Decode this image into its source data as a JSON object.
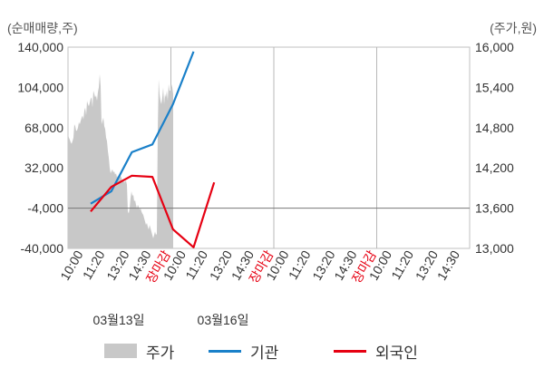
{
  "chart_data": {
    "type": "line",
    "left_unit_label": "(순매매량,주)",
    "right_unit_label": "(주가,원)",
    "left_axis": {
      "ticks": [
        "140,000",
        "104,000",
        "68,000",
        "32,000",
        "-4,000",
        "-40,000"
      ],
      "ylim": [
        -40000,
        140000
      ]
    },
    "right_axis": {
      "ticks": [
        "16,000",
        "15,400",
        "14,800",
        "14,200",
        "13,600",
        "13,000"
      ],
      "ylim": [
        13000,
        16000
      ]
    },
    "x_tick_labels": [
      "10:00",
      "11:20",
      "13:20",
      "14:30",
      "장마감",
      "10:00",
      "11:20",
      "13:20",
      "14:30",
      "장마감",
      "10:00",
      "11:20",
      "13:20",
      "14:30",
      "장마감",
      "10:00",
      "11:20",
      "13:20",
      "14:30"
    ],
    "x_tick_colors": [
      "#333333",
      "#333333",
      "#333333",
      "#333333",
      "#e60012",
      "#333333",
      "#333333",
      "#333333",
      "#333333",
      "#e60012",
      "#333333",
      "#333333",
      "#333333",
      "#333333",
      "#e60012",
      "#333333",
      "#333333",
      "#333333",
      "#333333"
    ],
    "date_labels": [
      "03월13일",
      "03월16일"
    ],
    "series": [
      {
        "name": "주가",
        "kind": "area",
        "axis": "right",
        "color": "#c8c8c8",
        "values": [
          14700,
          14650,
          14620,
          14580,
          14560,
          14600,
          14650,
          14850,
          14820,
          14750,
          14760,
          14800,
          14880,
          14850,
          14900,
          14950,
          14980,
          14920,
          15050,
          15100,
          14980,
          15200,
          15150,
          15120,
          15170,
          15230,
          15250,
          15100,
          15350,
          15300,
          15250,
          15280,
          15200,
          15330,
          15400,
          15600,
          15420,
          14850,
          14900,
          14950,
          14820,
          14780,
          14650,
          14600,
          14450,
          14350,
          14200,
          14120,
          14150,
          14180,
          14130,
          14150,
          14100,
          14120,
          14060,
          14080,
          14050,
          14100,
          14080,
          14050,
          14000,
          14020,
          13980,
          14000,
          14010,
          13950,
          13550,
          13520,
          13600,
          13750,
          13850,
          13780,
          13800,
          13700,
          13720,
          13650,
          13600,
          13650,
          13620,
          13580,
          13600,
          13550,
          13520,
          13500,
          13450,
          13400,
          13350,
          13380,
          13320,
          13280,
          13350,
          13300,
          13250,
          13200,
          13150,
          13200,
          13250,
          13200,
          13220,
          14750,
          15520,
          15300,
          15200,
          15150,
          15250,
          15400,
          15150,
          15300,
          15250,
          15350,
          15200,
          15450,
          15350,
          15350,
          15450,
          15400,
          15300
        ]
      },
      {
        "name": "기관",
        "kind": "line",
        "axis": "left",
        "color": "#1a80c9",
        "values": [
          0,
          11000,
          46000,
          53000,
          89000,
          136000
        ]
      },
      {
        "name": "외국인",
        "kind": "line",
        "axis": "left",
        "color": "#e60012",
        "values": [
          -7000,
          15000,
          25000,
          24000,
          -23000,
          -39000,
          19000
        ]
      }
    ],
    "legend": [
      "주가",
      "기관",
      "외국인"
    ],
    "legend_placement": "bottom",
    "grid": "vertical lines at each session close, horizontal line at -4,000"
  }
}
